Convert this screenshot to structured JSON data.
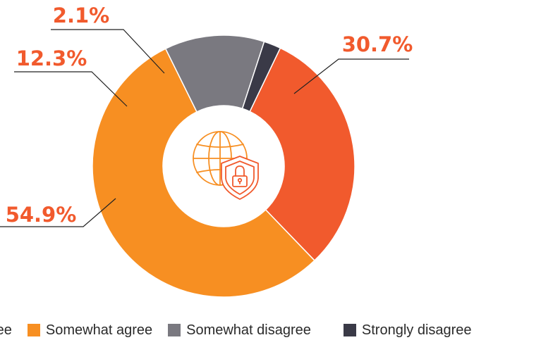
{
  "chart_data": {
    "type": "pie",
    "donut": true,
    "title": "",
    "center_icon": "globe-shield-lock-icon",
    "slices": [
      {
        "category": "Strongly agree",
        "value": 30.7,
        "label": "30.7%",
        "color": "#f15a2d",
        "label_color": "#f15a2d"
      },
      {
        "category": "Somewhat agree",
        "value": 54.9,
        "label": "54.9%",
        "color": "#f78f22",
        "label_color": "#f15a2d"
      },
      {
        "category": "Somewhat disagree",
        "value": 12.3,
        "label": "12.3%",
        "color": "#7a7980",
        "label_color": "#f15a2d"
      },
      {
        "category": "Strongly disagree",
        "value": 2.1,
        "label": "2.1%",
        "color": "#3a3a47",
        "label_color": "#f15a2d"
      }
    ],
    "legend": {
      "placement": "bottom",
      "entries": [
        {
          "text": "ree",
          "color": "#f15a2d"
        },
        {
          "text": "Somewhat agree",
          "color": "#f78f22"
        },
        {
          "text": "Somewhat disagree",
          "color": "#7a7980"
        },
        {
          "text": "Strongly disagree",
          "color": "#3a3a47"
        }
      ]
    }
  }
}
